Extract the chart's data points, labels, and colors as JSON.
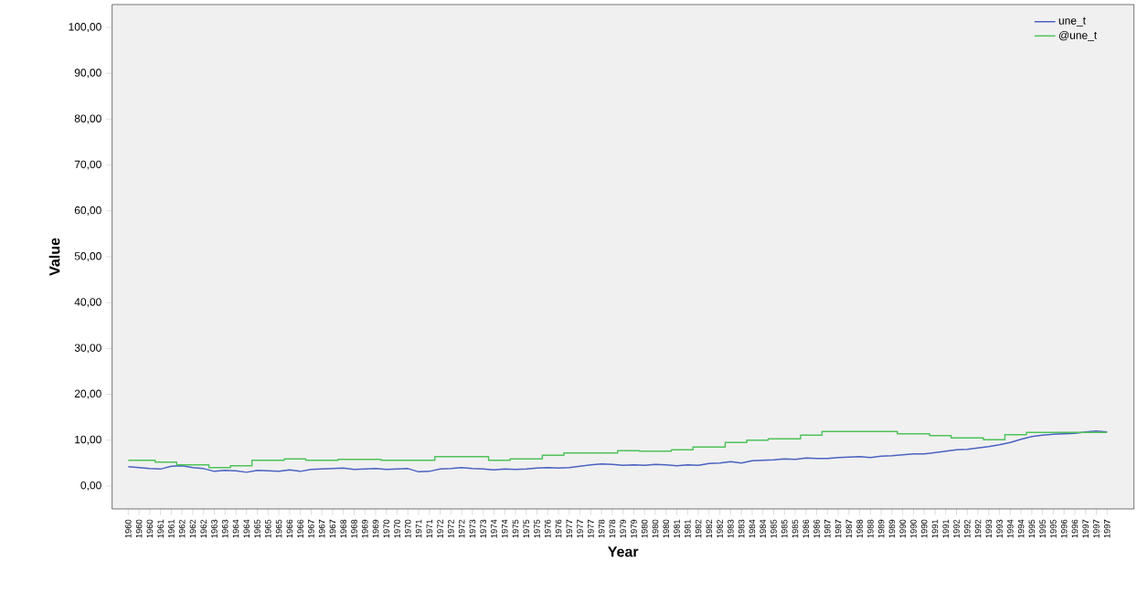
{
  "chart_data": {
    "type": "line",
    "xlabel": "Year",
    "ylabel": "Value",
    "categories": [
      "1960",
      "1960",
      "1960",
      "1961",
      "1961",
      "1962",
      "1962",
      "1962",
      "1963",
      "1963",
      "1964",
      "1964",
      "1965",
      "1965",
      "1965",
      "1966",
      "1966",
      "1967",
      "1967",
      "1967",
      "1968",
      "1968",
      "1969",
      "1969",
      "1970",
      "1970",
      "1970",
      "1971",
      "1971",
      "1972",
      "1972",
      "1972",
      "1973",
      "1973",
      "1974",
      "1974",
      "1975",
      "1975",
      "1975",
      "1976",
      "1976",
      "1977",
      "1977",
      "1977",
      "1978",
      "1978",
      "1979",
      "1979",
      "1980",
      "1980",
      "1980",
      "1981",
      "1981",
      "1982",
      "1982",
      "1982",
      "1983",
      "1983",
      "1984",
      "1984",
      "1985",
      "1985",
      "1985",
      "1986",
      "1986",
      "1987",
      "1987",
      "1987",
      "1988",
      "1988",
      "1989",
      "1989",
      "1990",
      "1990",
      "1990",
      "1991",
      "1991",
      "1992",
      "1992",
      "1992",
      "1993",
      "1993",
      "1994",
      "1994",
      "1995",
      "1995",
      "1995",
      "1996",
      "1996",
      "1997",
      "1997",
      "1997"
    ],
    "series": [
      {
        "name": "une_t",
        "color": "#4a62c2",
        "values": [
          4.2,
          4.0,
          3.8,
          3.7,
          4.3,
          4.4,
          4.0,
          3.8,
          3.2,
          3.4,
          3.3,
          3.0,
          3.4,
          3.3,
          3.2,
          3.5,
          3.2,
          3.6,
          3.7,
          3.8,
          3.9,
          3.6,
          3.7,
          3.8,
          3.6,
          3.7,
          3.8,
          3.1,
          3.2,
          3.7,
          3.8,
          4.0,
          3.8,
          3.7,
          3.5,
          3.7,
          3.6,
          3.7,
          3.9,
          4.0,
          3.9,
          4.0,
          4.3,
          4.6,
          4.8,
          4.7,
          4.5,
          4.6,
          4.5,
          4.7,
          4.6,
          4.4,
          4.6,
          4.5,
          4.9,
          5.0,
          5.3,
          5.0,
          5.5,
          5.6,
          5.7,
          5.9,
          5.8,
          6.1,
          6.0,
          6.0,
          6.2,
          6.3,
          6.4,
          6.2,
          6.5,
          6.6,
          6.8,
          7.0,
          7.0,
          7.3,
          7.6,
          7.9,
          8.0,
          8.3,
          8.6,
          9.0,
          9.5,
          10.2,
          10.8,
          11.1,
          11.3,
          11.4,
          11.5,
          11.8,
          12.0,
          11.8
        ]
      },
      {
        "name": "@une_t",
        "type": "step",
        "color": "#4ec25a",
        "values": [
          5.6,
          5.6,
          5.6,
          5.2,
          5.2,
          4.6,
          4.6,
          4.6,
          4.0,
          4.0,
          4.4,
          4.4,
          5.6,
          5.6,
          5.6,
          5.9,
          5.9,
          5.6,
          5.6,
          5.6,
          5.8,
          5.8,
          5.8,
          5.8,
          5.6,
          5.6,
          5.6,
          5.6,
          5.6,
          6.4,
          6.4,
          6.4,
          6.4,
          6.4,
          5.6,
          5.6,
          5.9,
          5.9,
          5.9,
          6.7,
          6.7,
          7.2,
          7.2,
          7.2,
          7.2,
          7.2,
          7.7,
          7.7,
          7.6,
          7.6,
          7.6,
          7.9,
          7.9,
          8.5,
          8.5,
          8.5,
          9.5,
          9.5,
          10.0,
          10.0,
          10.3,
          10.3,
          10.3,
          11.1,
          11.1,
          11.9,
          11.9,
          11.9,
          11.9,
          11.9,
          11.9,
          11.9,
          11.4,
          11.4,
          11.4,
          11.0,
          11.0,
          10.5,
          10.5,
          10.5,
          10.1,
          10.1,
          11.2,
          11.2,
          11.7,
          11.7,
          11.7,
          11.7,
          11.7,
          11.7,
          11.7,
          11.7
        ]
      }
    ],
    "ylim": [
      -5,
      105
    ],
    "yticks": [
      {
        "value": 0,
        "label": "0,00"
      },
      {
        "value": 10,
        "label": "10,00"
      },
      {
        "value": 20,
        "label": "20,00"
      },
      {
        "value": 30,
        "label": "30,00"
      },
      {
        "value": 40,
        "label": "40,00"
      },
      {
        "value": 50,
        "label": "50,00"
      },
      {
        "value": 60,
        "label": "60,00"
      },
      {
        "value": 70,
        "label": "70,00"
      },
      {
        "value": 80,
        "label": "80,00"
      },
      {
        "value": 90,
        "label": "90,00"
      },
      {
        "value": 100,
        "label": "100,00"
      }
    ],
    "legend": "top right"
  }
}
